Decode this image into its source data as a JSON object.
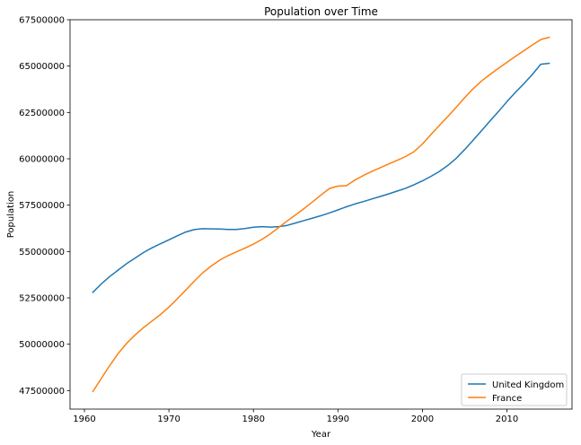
{
  "chart_data": {
    "type": "line",
    "title": "Population over Time",
    "xlabel": "Year",
    "ylabel": "Population",
    "xlim": [
      1958.3,
      2017.7
    ],
    "ylim": [
      46500000,
      67500000
    ],
    "xticks": [
      1960,
      1970,
      1980,
      1990,
      2000,
      2010
    ],
    "yticks": [
      47500000,
      50000000,
      52500000,
      55000000,
      57500000,
      60000000,
      62500000,
      65000000,
      67500000
    ],
    "grid": false,
    "legend_position": "lower-right",
    "x": [
      1961,
      1962,
      1963,
      1964,
      1965,
      1966,
      1967,
      1968,
      1969,
      1970,
      1971,
      1972,
      1973,
      1974,
      1975,
      1976,
      1977,
      1978,
      1979,
      1980,
      1981,
      1982,
      1983,
      1984,
      1985,
      1986,
      1987,
      1988,
      1989,
      1990,
      1991,
      1992,
      1993,
      1994,
      1995,
      1996,
      1997,
      1998,
      1999,
      2000,
      2001,
      2002,
      2003,
      2004,
      2005,
      2006,
      2007,
      2008,
      2009,
      2010,
      2011,
      2012,
      2013,
      2014,
      2015
    ],
    "series": [
      {
        "name": "United Kingdom",
        "color": "#1f77b4",
        "values": [
          52800000,
          53250000,
          53650000,
          54000000,
          54350000,
          54650000,
          54950000,
          55200000,
          55420000,
          55630000,
          55850000,
          56050000,
          56180000,
          56230000,
          56220000,
          56210000,
          56190000,
          56190000,
          56240000,
          56310000,
          56340000,
          56320000,
          56340000,
          56410000,
          56540000,
          56670000,
          56800000,
          56930000,
          57080000,
          57240000,
          57410000,
          57560000,
          57690000,
          57830000,
          57970000,
          58110000,
          58260000,
          58410000,
          58600000,
          58810000,
          59050000,
          59320000,
          59640000,
          60030000,
          60500000,
          61000000,
          61520000,
          62040000,
          62550000,
          63080000,
          63580000,
          64050000,
          64550000,
          65100000,
          65150000
        ],
        "values_note": ""
      },
      {
        "name": "France",
        "color": "#ff7f0e",
        "values": [
          47450000,
          48150000,
          48850000,
          49500000,
          50050000,
          50500000,
          50900000,
          51250000,
          51600000,
          52000000,
          52450000,
          52920000,
          53400000,
          53850000,
          54220000,
          54530000,
          54780000,
          54980000,
          55180000,
          55400000,
          55650000,
          55950000,
          56300000,
          56650000,
          56980000,
          57320000,
          57680000,
          58050000,
          58400000,
          58530000,
          58550000,
          58850000,
          59100000,
          59320000,
          59520000,
          59720000,
          59920000,
          60120000,
          60380000,
          60800000,
          61300000,
          61800000,
          62280000,
          62780000,
          63300000,
          63780000,
          64200000,
          64550000,
          64880000,
          65200000,
          65520000,
          65830000,
          66140000,
          66430000,
          66550000
        ]
      }
    ]
  }
}
